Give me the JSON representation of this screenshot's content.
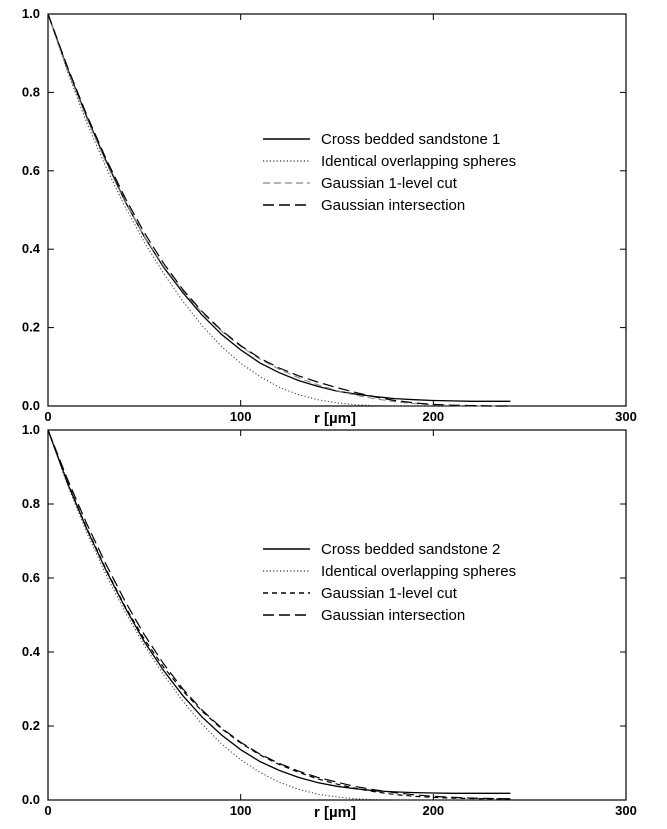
{
  "chart_data": [
    {
      "type": "line",
      "xlabel": "r [µm]",
      "ylabel": "",
      "xlim": [
        0,
        300
      ],
      "ylim": [
        0,
        1.0
      ],
      "xticks": [
        "0",
        "100",
        "200",
        "300"
      ],
      "yticks": [
        "0.0",
        "0.2",
        "0.4",
        "0.6",
        "0.8",
        "1.0"
      ],
      "grid": false,
      "legend_position": "right-middle",
      "x": [
        0,
        10,
        20,
        30,
        40,
        50,
        60,
        70,
        80,
        90,
        100,
        110,
        120,
        130,
        140,
        150,
        160,
        170,
        180,
        190,
        200,
        210,
        220,
        230,
        240
      ],
      "series": [
        {
          "name": "Cross bedded sandstone 1",
          "style": "solid",
          "values": [
            1.0,
            0.862,
            0.739,
            0.627,
            0.522,
            0.432,
            0.354,
            0.289,
            0.232,
            0.183,
            0.143,
            0.11,
            0.085,
            0.065,
            0.05,
            0.038,
            0.03,
            0.024,
            0.019,
            0.016,
            0.014,
            0.013,
            0.012,
            0.012,
            0.012
          ]
        },
        {
          "name": "Identical overlapping spheres",
          "style": "dotted",
          "values": [
            1.0,
            0.854,
            0.724,
            0.61,
            0.508,
            0.418,
            0.338,
            0.267,
            0.205,
            0.152,
            0.109,
            0.075,
            0.048,
            0.029,
            0.016,
            0.008,
            0.003,
            0.001,
            0.0,
            0.0,
            0.0,
            0.0,
            0.0,
            0.0,
            0.0
          ]
        },
        {
          "name": "Gaussian 1-level cut",
          "style": "dashed-light",
          "values": [
            1.0,
            0.858,
            0.735,
            0.622,
            0.52,
            0.433,
            0.357,
            0.293,
            0.238,
            0.191,
            0.152,
            0.12,
            0.094,
            0.072,
            0.054,
            0.039,
            0.027,
            0.018,
            0.011,
            0.006,
            0.003,
            0.001,
            0.0,
            0.0,
            0.0
          ]
        },
        {
          "name": "Gaussian intersection",
          "style": "long-dashed",
          "values": [
            1.0,
            0.866,
            0.744,
            0.632,
            0.531,
            0.442,
            0.364,
            0.297,
            0.241,
            0.193,
            0.154,
            0.122,
            0.097,
            0.077,
            0.061,
            0.047,
            0.034,
            0.023,
            0.014,
            0.008,
            0.004,
            0.002,
            0.001,
            0.0,
            0.0
          ]
        }
      ]
    },
    {
      "type": "line",
      "xlabel": "r [µm]",
      "ylabel": "",
      "xlim": [
        0,
        300
      ],
      "ylim": [
        0,
        1.0
      ],
      "xticks": [
        "0",
        "100",
        "200",
        "300"
      ],
      "yticks": [
        "0.0",
        "0.2",
        "0.4",
        "0.6",
        "0.8",
        "1.0"
      ],
      "grid": false,
      "legend_position": "right-middle",
      "x": [
        0,
        10,
        20,
        30,
        40,
        50,
        60,
        70,
        80,
        90,
        100,
        110,
        120,
        130,
        140,
        150,
        160,
        170,
        180,
        190,
        200,
        210,
        220,
        230,
        240
      ],
      "series": [
        {
          "name": "Cross bedded sandstone 2",
          "style": "solid",
          "values": [
            1.0,
            0.858,
            0.734,
            0.622,
            0.52,
            0.428,
            0.35,
            0.282,
            0.224,
            0.176,
            0.136,
            0.104,
            0.08,
            0.061,
            0.047,
            0.037,
            0.03,
            0.025,
            0.022,
            0.02,
            0.019,
            0.018,
            0.018,
            0.018,
            0.018
          ]
        },
        {
          "name": "Identical overlapping spheres",
          "style": "dotted",
          "values": [
            1.0,
            0.853,
            0.724,
            0.61,
            0.508,
            0.418,
            0.338,
            0.267,
            0.205,
            0.152,
            0.109,
            0.075,
            0.048,
            0.029,
            0.016,
            0.008,
            0.003,
            0.001,
            0.0,
            0.0,
            0.0,
            0.0,
            0.0,
            0.0,
            0.0
          ]
        },
        {
          "name": "Gaussian 1-level cut",
          "style": "short-dashed",
          "values": [
            1.0,
            0.86,
            0.737,
            0.625,
            0.523,
            0.435,
            0.359,
            0.295,
            0.24,
            0.193,
            0.154,
            0.122,
            0.096,
            0.075,
            0.057,
            0.043,
            0.031,
            0.022,
            0.015,
            0.01,
            0.007,
            0.005,
            0.004,
            0.003,
            0.003
          ]
        },
        {
          "name": "Gaussian intersection",
          "style": "long-dashed",
          "values": [
            1.0,
            0.868,
            0.748,
            0.638,
            0.537,
            0.447,
            0.368,
            0.3,
            0.243,
            0.195,
            0.156,
            0.124,
            0.099,
            0.078,
            0.061,
            0.048,
            0.036,
            0.027,
            0.02,
            0.014,
            0.01,
            0.007,
            0.005,
            0.004,
            0.003
          ]
        }
      ]
    }
  ]
}
